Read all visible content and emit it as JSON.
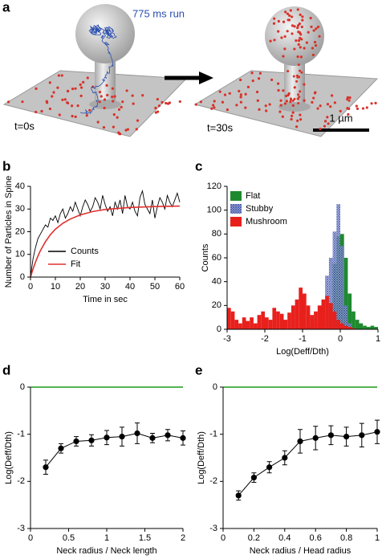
{
  "panel_labels": [
    "a",
    "b",
    "c",
    "d",
    "e"
  ],
  "panel_a": {
    "trajectory_label": "775 ms run",
    "before_label": "t=0s",
    "after_label": "t=30s",
    "scale_bar_label": "1 µm"
  },
  "chart_data": [
    {
      "type": "line",
      "xlabel": "Time in sec",
      "ylabel": "Number of Particles in Spine",
      "xlim": [
        0,
        60
      ],
      "ylim": [
        0,
        40
      ],
      "xticks": [
        0,
        10,
        20,
        30,
        40,
        50,
        60
      ],
      "yticks": [
        0,
        10,
        20,
        30,
        40
      ],
      "legend": "lower left",
      "series": [
        {
          "name": "Counts",
          "color": "#000000",
          "x": [
            0,
            1,
            2,
            3,
            4,
            5,
            6,
            7,
            8,
            9,
            10,
            11,
            12,
            13,
            14,
            15,
            16,
            17,
            18,
            19,
            20,
            21,
            22,
            23,
            24,
            25,
            26,
            27,
            28,
            29,
            30,
            31,
            32,
            33,
            34,
            35,
            36,
            37,
            38,
            39,
            40,
            41,
            42,
            43,
            44,
            45,
            46,
            47,
            48,
            49,
            50,
            51,
            52,
            53,
            54,
            55,
            56,
            57,
            58,
            59,
            60
          ],
          "values": [
            0,
            8,
            13,
            17,
            19,
            21,
            23,
            22,
            26,
            25,
            27,
            24,
            28,
            30,
            26,
            28,
            31,
            29,
            33,
            30,
            27,
            31,
            34,
            32,
            29,
            31,
            35,
            33,
            30,
            36,
            32,
            29,
            31,
            27,
            33,
            30,
            34,
            28,
            36,
            31,
            30,
            33,
            29,
            27,
            35,
            38,
            32,
            30,
            28,
            34,
            26,
            31,
            35,
            33,
            30,
            36,
            33,
            31,
            34,
            37,
            33
          ]
        },
        {
          "name": "Fit",
          "color": "#e03030",
          "x": [
            0,
            1,
            2,
            3,
            4,
            6,
            8,
            10,
            13,
            16,
            20,
            25,
            30,
            40,
            50,
            60
          ],
          "values": [
            0,
            3.5,
            6.6,
            9.3,
            11.7,
            15.6,
            18.7,
            21.1,
            23.7,
            25.6,
            27.4,
            28.9,
            29.8,
            30.7,
            31.1,
            31.3
          ]
        }
      ]
    },
    {
      "type": "histogram",
      "xlabel": "Log(Deff/Dth)",
      "ylabel": "Counts",
      "xlim": [
        -3,
        1
      ],
      "ylim": [
        0,
        120
      ],
      "xticks": [
        -3,
        -2,
        -1,
        0,
        1
      ],
      "yticks": [
        0,
        20,
        40,
        60,
        80,
        100,
        120
      ],
      "legend": "upper left",
      "bins": [
        -3,
        -2.9,
        -2.8,
        -2.7,
        -2.6,
        -2.5,
        -2.4,
        -2.3,
        -2.2,
        -2.1,
        -2,
        -1.9,
        -1.8,
        -1.7,
        -1.6,
        -1.5,
        -1.4,
        -1.3,
        -1.2,
        -1.1,
        -1,
        -0.9,
        -0.8,
        -0.7,
        -0.6,
        -0.5,
        -0.4,
        -0.3,
        -0.2,
        -0.1,
        0,
        0.1,
        0.2,
        0.3,
        0.4,
        0.5,
        0.6,
        0.7,
        0.8,
        0.9,
        1
      ],
      "series": [
        {
          "name": "Flat",
          "color": "#1e8a2e",
          "values": [
            0,
            0,
            0,
            0,
            0,
            0,
            0,
            0,
            0,
            0,
            0,
            0,
            0,
            0,
            0,
            0,
            0,
            0,
            0,
            0,
            0,
            0,
            0,
            0,
            0,
            0,
            5,
            15,
            55,
            78,
            80,
            60,
            30,
            15,
            8,
            5,
            3,
            2,
            3,
            2
          ]
        },
        {
          "name": "Stubby",
          "color": "#3a4fa8",
          "values": [
            0,
            0,
            0,
            0,
            0,
            0,
            0,
            0,
            0,
            0,
            0,
            0,
            0,
            0,
            0,
            0,
            0,
            0,
            0,
            2,
            3,
            2,
            3,
            5,
            15,
            25,
            45,
            60,
            82,
            105,
            70,
            20,
            5,
            0,
            0,
            0,
            0,
            0,
            0,
            0
          ]
        },
        {
          "name": "Mushroom",
          "color": "#e8201c",
          "values": [
            18,
            15,
            8,
            5,
            10,
            7,
            10,
            5,
            12,
            15,
            10,
            8,
            18,
            15,
            13,
            8,
            14,
            20,
            25,
            35,
            30,
            20,
            12,
            15,
            20,
            25,
            28,
            22,
            15,
            8,
            5,
            3,
            2,
            1,
            0,
            0,
            0,
            0,
            0,
            0
          ]
        }
      ]
    },
    {
      "type": "errorbar",
      "xlabel": "Neck radius / Neck length",
      "ylabel": "Log(Deff/Dth)",
      "xlim": [
        0,
        2
      ],
      "ylim": [
        -3,
        0
      ],
      "xticks": [
        0,
        0.5,
        1,
        1.5,
        2
      ],
      "yticks": [
        -3,
        -2,
        -1,
        0
      ],
      "reference_line": {
        "value": 0,
        "color": "#1a9a1a"
      },
      "x": [
        0.2,
        0.4,
        0.6,
        0.8,
        1,
        1.2,
        1.4,
        1.6,
        1.8,
        2
      ],
      "series": [
        {
          "color": "#000000",
          "values": [
            -1.7,
            -1.3,
            -1.15,
            -1.13,
            -1.07,
            -1.05,
            -0.98,
            -1.08,
            -1.02,
            -1.08
          ],
          "errors": [
            0.15,
            0.1,
            0.1,
            0.12,
            0.15,
            0.2,
            0.22,
            0.1,
            0.12,
            0.15
          ]
        }
      ]
    },
    {
      "type": "errorbar",
      "xlabel": "Neck radius / Head radius",
      "ylabel": "Log(Deff/Dth)",
      "xlim": [
        0,
        1
      ],
      "ylim": [
        -3,
        0
      ],
      "xticks": [
        0,
        0.2,
        0.4,
        0.6,
        0.8,
        1
      ],
      "yticks": [
        -3,
        -2,
        -1,
        0
      ],
      "reference_line": {
        "value": 0,
        "color": "#1a9a1a"
      },
      "x": [
        0.1,
        0.2,
        0.3,
        0.4,
        0.5,
        0.6,
        0.7,
        0.8,
        0.9,
        1
      ],
      "series": [
        {
          "color": "#000000",
          "values": [
            -2.3,
            -1.92,
            -1.7,
            -1.5,
            -1.15,
            -1.08,
            -1.02,
            -1.05,
            -1.02,
            -0.95
          ],
          "errors": [
            0.1,
            0.1,
            0.12,
            0.15,
            0.25,
            0.25,
            0.2,
            0.2,
            0.25,
            0.25
          ]
        }
      ]
    }
  ]
}
